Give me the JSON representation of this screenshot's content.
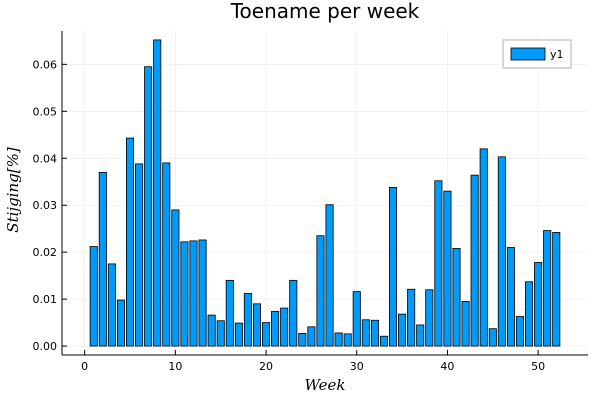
{
  "chart_data": {
    "type": "bar",
    "title": "Toename per week",
    "xlabel": "Week",
    "ylabel": "Stijging[%]",
    "x": [
      1,
      2,
      3,
      4,
      5,
      6,
      7,
      8,
      9,
      10,
      11,
      12,
      13,
      14,
      15,
      16,
      17,
      18,
      19,
      20,
      21,
      22,
      23,
      24,
      25,
      26,
      27,
      28,
      29,
      30,
      31,
      32,
      33,
      34,
      35,
      36,
      37,
      38,
      39,
      40,
      41,
      42,
      43,
      44,
      45,
      46,
      47,
      48,
      49,
      50,
      51,
      52
    ],
    "series": [
      {
        "name": "y1",
        "color": "#009af9",
        "values": [
          0.0212,
          0.037,
          0.0175,
          0.0098,
          0.0443,
          0.0388,
          0.0595,
          0.0652,
          0.039,
          0.029,
          0.0222,
          0.0224,
          0.0226,
          0.0066,
          0.0054,
          0.014,
          0.0049,
          0.0112,
          0.009,
          0.005,
          0.0074,
          0.0081,
          0.014,
          0.0027,
          0.0041,
          0.0235,
          0.0301,
          0.0028,
          0.0026,
          0.0116,
          0.0056,
          0.0055,
          0.0021,
          0.0338,
          0.0068,
          0.0121,
          0.0045,
          0.012,
          0.0352,
          0.033,
          0.0208,
          0.0095,
          0.0364,
          0.042,
          0.0037,
          0.0403,
          0.021,
          0.0063,
          0.0137,
          0.0178,
          0.0246,
          0.0242
        ]
      }
    ],
    "xticks": [
      0,
      10,
      20,
      30,
      40,
      50
    ],
    "xtick_labels": [
      "0",
      "10",
      "20",
      "30",
      "40",
      "50"
    ],
    "yticks": [
      0.0,
      0.01,
      0.02,
      0.03,
      0.04,
      0.05,
      0.06
    ],
    "ytick_labels": [
      "0.00",
      "0.01",
      "0.02",
      "0.03",
      "0.04",
      "0.05",
      "0.06"
    ],
    "xlim": [
      -2.5,
      55.5
    ],
    "ylim": [
      -0.0019,
      0.0671
    ],
    "grid": true,
    "legend_position": "top-right"
  }
}
